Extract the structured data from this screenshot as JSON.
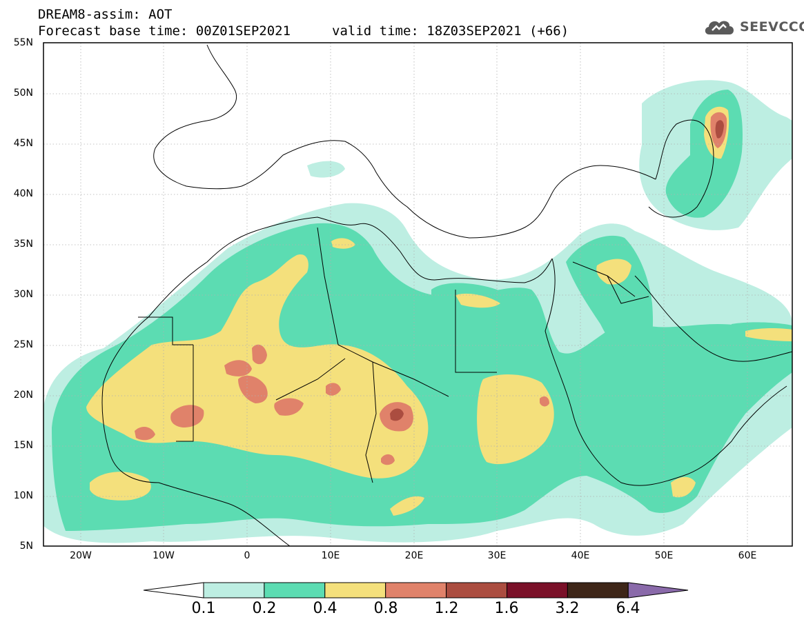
{
  "header": {
    "title": "DREAM8-assim: AOT",
    "base_time": "Forecast base time: 00Z01SEP2021",
    "valid_time": "valid time: 18Z03SEP2021 (+66)",
    "logo_text": "SEEVCCC",
    "logo_icon": "cloud-icon"
  },
  "map": {
    "lat_labels": [
      "55N",
      "50N",
      "45N",
      "40N",
      "35N",
      "30N",
      "25N",
      "20N",
      "15N",
      "10N",
      "5N"
    ],
    "lon_labels": [
      "20W",
      "10W",
      "0",
      "10E",
      "20E",
      "30E",
      "40E",
      "50E",
      "60E"
    ],
    "lat_range": [
      5,
      55
    ],
    "lon_range": [
      -25,
      65
    ],
    "grid": "dotted"
  },
  "colorbar": {
    "labels": [
      "0.1",
      "0.2",
      "0.4",
      "0.8",
      "1.2",
      "1.6",
      "3.2",
      "6.4"
    ],
    "colors": [
      "#bdeee2",
      "#5cdcb2",
      "#f4e07c",
      "#e0826a",
      "#ab4d40",
      "#7a1028",
      "#3e2618",
      "#8a6aaa"
    ],
    "under_color": "#ffffff"
  }
}
